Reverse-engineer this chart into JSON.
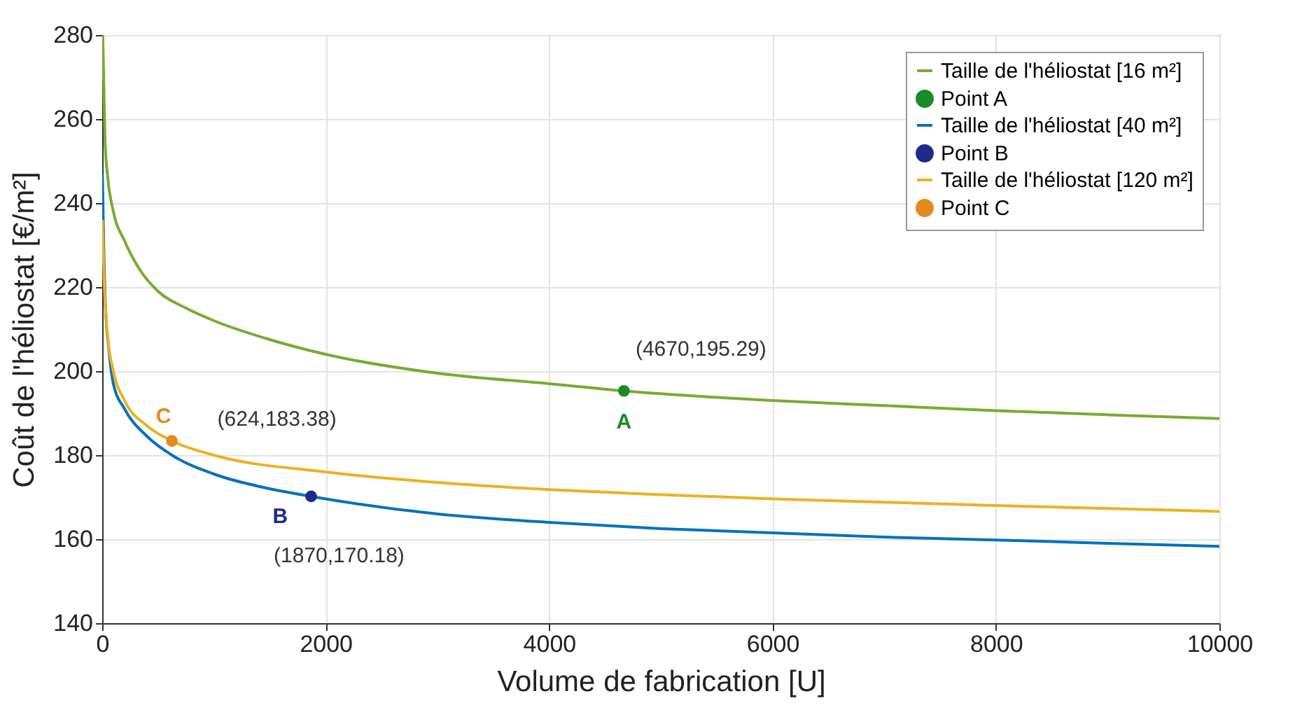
{
  "chart_data": {
    "type": "line",
    "xlabel": "Volume de fabrication [U]",
    "ylabel": "Coût de l'héliostat [€/m²]",
    "xlim": [
      0,
      10000
    ],
    "ylim": [
      140,
      280
    ],
    "xticks": [
      0,
      2000,
      4000,
      6000,
      8000,
      10000
    ],
    "yticks": [
      140,
      160,
      180,
      200,
      220,
      240,
      260,
      280
    ],
    "grid": true,
    "legend": "top right",
    "series": [
      {
        "name": "Taille de l'héliostat [16 m²]",
        "color": "#77ac30",
        "x": [
          5,
          25,
          50,
          100,
          200,
          340,
          500,
          750,
          1000,
          1500,
          2000,
          3000,
          4000,
          4670,
          6000,
          7000,
          8000,
          9000,
          10000
        ],
        "values": [
          280,
          255,
          246,
          238,
          231,
          224,
          219,
          215,
          212,
          207.5,
          204,
          199.5,
          197,
          195.29,
          193,
          191.8,
          190.6,
          189.6,
          188.7
        ]
      },
      {
        "name": "Point A",
        "type": "scatter",
        "color": "#1a8a2a",
        "x": [
          4670
        ],
        "values": [
          195.29
        ]
      },
      {
        "name": "Taille de l'héliostat [40 m²]",
        "color": "#0072bd",
        "x": [
          2,
          10,
          30,
          60,
          100,
          200,
          400,
          624,
          1000,
          1500,
          1870,
          3000,
          4000,
          5000,
          6000,
          7000,
          8000,
          9000,
          10000
        ],
        "values": [
          247,
          235,
          215,
          205,
          197,
          191,
          184.5,
          180,
          175.5,
          172,
          170.18,
          166,
          164,
          162.5,
          161.5,
          160.5,
          159.8,
          159,
          158.3
        ]
      },
      {
        "name": "Point B",
        "type": "scatter",
        "color": "#1f2a8a",
        "x": [
          1870
        ],
        "values": [
          170.18
        ]
      },
      {
        "name": "Taille de l'héliostat [120 m²]",
        "color": "#edb120",
        "x": [
          2,
          20,
          50,
          100,
          200,
          400,
          624,
          1000,
          2000,
          3000,
          4000,
          5000,
          6000,
          7000,
          8000,
          9000,
          10000
        ],
        "values": [
          236,
          220,
          208,
          200,
          193,
          187,
          183.38,
          180,
          176,
          173.5,
          171.8,
          170.6,
          169.6,
          168.8,
          168,
          167.3,
          166.6
        ]
      },
      {
        "name": "Point C",
        "type": "scatter",
        "color": "#e58a1f",
        "x": [
          624
        ],
        "values": [
          183.38
        ]
      }
    ],
    "annotations": [
      {
        "text": "(4670,195.29)",
        "x": 4670,
        "y": 195.29
      },
      {
        "text": "A",
        "x": 4670,
        "y": 195.29
      },
      {
        "text": "(1870,170.18)",
        "x": 1870,
        "y": 170.18
      },
      {
        "text": "B",
        "x": 1870,
        "y": 170.18
      },
      {
        "text": "(624,183.38)",
        "x": 624,
        "y": 183.38
      },
      {
        "text": "C",
        "x": 624,
        "y": 183.38
      }
    ]
  }
}
